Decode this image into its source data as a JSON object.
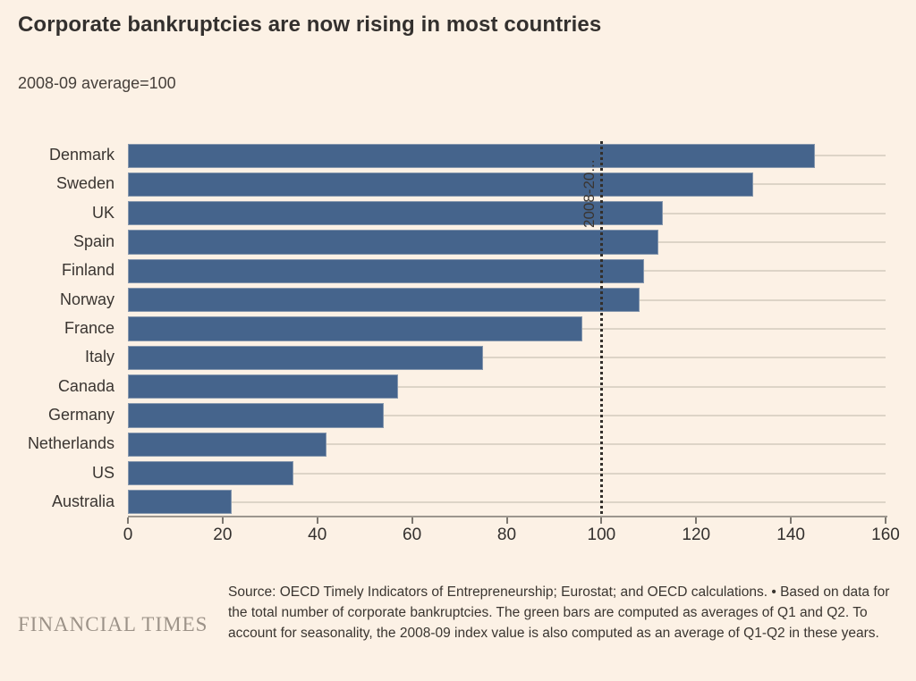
{
  "page": {
    "title": "Corporate bankruptcies are now rising in most countries",
    "subtitle": "2008-09 average=100"
  },
  "chart_data": {
    "type": "bar",
    "orientation": "horizontal",
    "title": "Corporate bankruptcies are now rising in most countries",
    "subtitle": "2008-09 average=100",
    "categories": [
      "Denmark",
      "Sweden",
      "UK",
      "Spain",
      "Finland",
      "Norway",
      "France",
      "Italy",
      "Canada",
      "Germany",
      "Netherlands",
      "US",
      "Australia"
    ],
    "values": [
      145,
      132,
      113,
      112,
      109,
      108,
      96,
      75,
      57,
      54,
      42,
      35,
      22
    ],
    "xlim": [
      0,
      160
    ],
    "x_ticks": [
      0,
      20,
      40,
      60,
      80,
      100,
      120,
      140,
      160
    ],
    "reference_line": {
      "value": 100,
      "label": "2008-20..."
    },
    "grid": true,
    "legend_position": "none",
    "bar_color": "#45648c",
    "background_color": "#fcf1e5"
  },
  "footer": {
    "logo": "FINANCIAL TIMES",
    "source": "Source: OECD Timely Indicators of Entrepreneurship; Eurostat; and OECD calculations. • Based on data for the total number of corporate bankruptcies. The green bars are computed as averages of Q1 and Q2. To account for seasonality, the 2008-09 index value is also computed as an average of Q1-Q2 in these years."
  }
}
